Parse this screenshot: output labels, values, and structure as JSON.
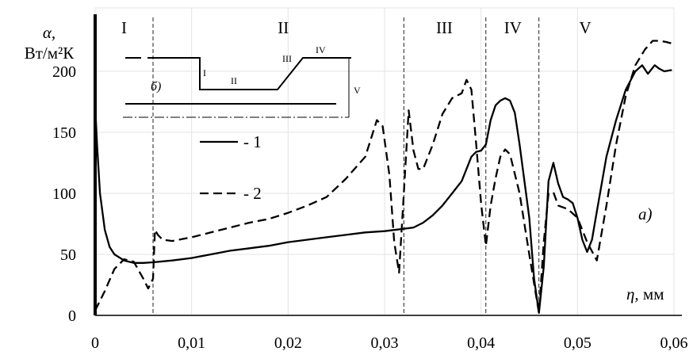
{
  "chart_data": {
    "type": "line",
    "ylabel_symbol": "α,",
    "ylabel_unit": "Вт/м²К",
    "xlabel_symbol": "η,",
    "xlabel_unit": " мм",
    "panel_label": "а)",
    "xlim": [
      0,
      0.06
    ],
    "ylim": [
      0,
      200
    ],
    "x_ticks": [
      0,
      0.01,
      0.02,
      0.03,
      0.04,
      0.05,
      0.06
    ],
    "x_tick_labels": [
      "0",
      "0,01",
      "0,02",
      "0,03",
      "0,04",
      "0,05",
      "0,06"
    ],
    "y_ticks": [
      0,
      50,
      100,
      150,
      200
    ],
    "y_tick_labels": [
      "0",
      "50",
      "100",
      "150",
      "200"
    ],
    "grid": true,
    "zone_boundaries": [
      0.006,
      0.032,
      0.0405,
      0.046
    ],
    "zones": [
      {
        "label": "I",
        "x": 0.003
      },
      {
        "label": "II",
        "x": 0.0195
      },
      {
        "label": "III",
        "x": 0.0362
      },
      {
        "label": "IV",
        "x": 0.0433
      },
      {
        "label": "V",
        "x": 0.0508
      }
    ],
    "legend_position": "left-middle",
    "series": [
      {
        "name": "- 1",
        "style": "solid",
        "color": "#000000",
        "points": [
          [
            0.0,
            173
          ],
          [
            0.0002,
            140
          ],
          [
            0.0005,
            100
          ],
          [
            0.001,
            70
          ],
          [
            0.0015,
            56
          ],
          [
            0.002,
            50
          ],
          [
            0.003,
            45
          ],
          [
            0.004,
            43
          ],
          [
            0.005,
            43
          ],
          [
            0.006,
            43.5
          ],
          [
            0.008,
            45
          ],
          [
            0.01,
            47
          ],
          [
            0.012,
            50
          ],
          [
            0.014,
            53
          ],
          [
            0.016,
            55
          ],
          [
            0.018,
            57
          ],
          [
            0.02,
            60
          ],
          [
            0.022,
            62
          ],
          [
            0.024,
            64
          ],
          [
            0.026,
            66
          ],
          [
            0.028,
            68
          ],
          [
            0.03,
            69
          ],
          [
            0.031,
            70
          ],
          [
            0.032,
            71
          ],
          [
            0.033,
            72
          ],
          [
            0.034,
            76
          ],
          [
            0.035,
            82
          ],
          [
            0.036,
            90
          ],
          [
            0.037,
            100
          ],
          [
            0.038,
            110
          ],
          [
            0.039,
            130
          ],
          [
            0.0395,
            134
          ],
          [
            0.04,
            135
          ],
          [
            0.0405,
            140
          ],
          [
            0.041,
            160
          ],
          [
            0.0415,
            172
          ],
          [
            0.042,
            176
          ],
          [
            0.0425,
            178
          ],
          [
            0.043,
            176
          ],
          [
            0.0435,
            166
          ],
          [
            0.044,
            140
          ],
          [
            0.045,
            80
          ],
          [
            0.0455,
            30
          ],
          [
            0.046,
            2
          ],
          [
            0.0465,
            40
          ],
          [
            0.047,
            110
          ],
          [
            0.0475,
            125
          ],
          [
            0.048,
            108
          ],
          [
            0.0485,
            97
          ],
          [
            0.049,
            95
          ],
          [
            0.0495,
            92
          ],
          [
            0.05,
            80
          ],
          [
            0.0505,
            62
          ],
          [
            0.051,
            52
          ],
          [
            0.0515,
            62
          ],
          [
            0.052,
            85
          ],
          [
            0.053,
            130
          ],
          [
            0.054,
            160
          ],
          [
            0.055,
            185
          ],
          [
            0.056,
            200
          ],
          [
            0.0567,
            205
          ],
          [
            0.0573,
            198
          ],
          [
            0.058,
            205
          ],
          [
            0.0585,
            202
          ],
          [
            0.059,
            200
          ],
          [
            0.0597,
            201
          ]
        ]
      },
      {
        "name": "- 2",
        "style": "dashed",
        "color": "#000000",
        "points": [
          [
            0.0,
            4
          ],
          [
            0.001,
            20
          ],
          [
            0.002,
            38
          ],
          [
            0.003,
            46
          ],
          [
            0.004,
            44
          ],
          [
            0.005,
            30
          ],
          [
            0.0055,
            22
          ],
          [
            0.006,
            30
          ],
          [
            0.0062,
            70
          ],
          [
            0.0065,
            66
          ],
          [
            0.007,
            62
          ],
          [
            0.008,
            61
          ],
          [
            0.01,
            64
          ],
          [
            0.012,
            68
          ],
          [
            0.014,
            72
          ],
          [
            0.016,
            76
          ],
          [
            0.018,
            79
          ],
          [
            0.02,
            84
          ],
          [
            0.022,
            90
          ],
          [
            0.024,
            97
          ],
          [
            0.026,
            112
          ],
          [
            0.028,
            130
          ],
          [
            0.0292,
            160
          ],
          [
            0.0298,
            155
          ],
          [
            0.0305,
            115
          ],
          [
            0.031,
            60
          ],
          [
            0.0315,
            35
          ],
          [
            0.032,
            100
          ],
          [
            0.0325,
            168
          ],
          [
            0.033,
            135
          ],
          [
            0.0335,
            120
          ],
          [
            0.034,
            120
          ],
          [
            0.035,
            140
          ],
          [
            0.036,
            165
          ],
          [
            0.037,
            178
          ],
          [
            0.038,
            182
          ],
          [
            0.0385,
            193
          ],
          [
            0.039,
            185
          ],
          [
            0.0395,
            140
          ],
          [
            0.04,
            92
          ],
          [
            0.0405,
            57
          ],
          [
            0.041,
            90
          ],
          [
            0.0415,
            112
          ],
          [
            0.042,
            130
          ],
          [
            0.0425,
            136
          ],
          [
            0.043,
            132
          ],
          [
            0.044,
            100
          ],
          [
            0.045,
            50
          ],
          [
            0.046,
            2
          ],
          [
            0.0465,
            60
          ],
          [
            0.047,
            100
          ],
          [
            0.0475,
            101
          ],
          [
            0.048,
            90
          ],
          [
            0.049,
            87
          ],
          [
            0.05,
            80
          ],
          [
            0.051,
            60
          ],
          [
            0.052,
            45
          ],
          [
            0.053,
            90
          ],
          [
            0.054,
            140
          ],
          [
            0.055,
            180
          ],
          [
            0.056,
            205
          ],
          [
            0.057,
            218
          ],
          [
            0.0578,
            225
          ],
          [
            0.0585,
            225
          ],
          [
            0.0592,
            224
          ],
          [
            0.0597,
            223
          ]
        ]
      }
    ],
    "inset": {
      "label": "б)",
      "zone_labels": [
        "I",
        "II",
        "III",
        "IV",
        "V"
      ]
    }
  }
}
